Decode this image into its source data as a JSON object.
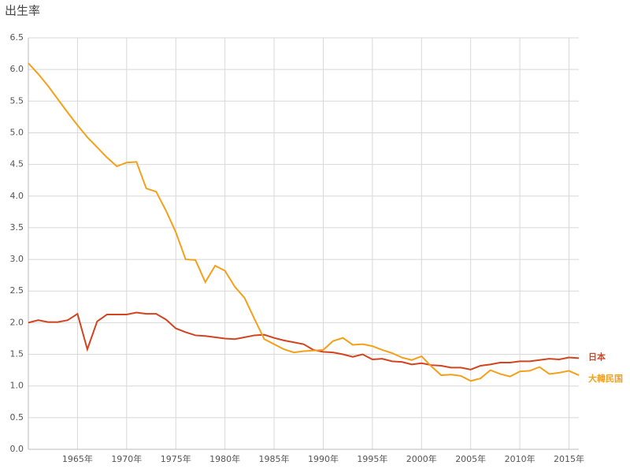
{
  "chart_data": {
    "type": "line",
    "title": "出生率",
    "x": [
      1960,
      1961,
      1962,
      1963,
      1964,
      1965,
      1966,
      1967,
      1968,
      1969,
      1970,
      1971,
      1972,
      1973,
      1974,
      1975,
      1976,
      1977,
      1978,
      1979,
      1980,
      1981,
      1982,
      1983,
      1984,
      1985,
      1986,
      1987,
      1988,
      1989,
      1990,
      1991,
      1992,
      1993,
      1994,
      1995,
      1996,
      1997,
      1998,
      1999,
      2000,
      2001,
      2002,
      2003,
      2004,
      2005,
      2006,
      2007,
      2008,
      2009,
      2010,
      2011,
      2012,
      2013,
      2014,
      2015,
      2016
    ],
    "series": [
      {
        "name": "日本",
        "color": "#d2441f",
        "values": [
          2.0,
          2.04,
          2.01,
          2.01,
          2.04,
          2.14,
          1.58,
          2.02,
          2.13,
          2.13,
          2.13,
          2.16,
          2.14,
          2.14,
          2.05,
          1.91,
          1.85,
          1.8,
          1.79,
          1.77,
          1.75,
          1.74,
          1.77,
          1.8,
          1.81,
          1.76,
          1.72,
          1.69,
          1.66,
          1.57,
          1.54,
          1.53,
          1.5,
          1.46,
          1.5,
          1.42,
          1.43,
          1.39,
          1.38,
          1.34,
          1.36,
          1.33,
          1.32,
          1.29,
          1.29,
          1.26,
          1.32,
          1.34,
          1.37,
          1.37,
          1.39,
          1.39,
          1.41,
          1.43,
          1.42,
          1.45,
          1.44
        ]
      },
      {
        "name": "大韓民国",
        "color": "#f5a01a",
        "values": [
          6.1,
          5.93,
          5.74,
          5.53,
          5.32,
          5.12,
          4.93,
          4.77,
          4.61,
          4.47,
          4.53,
          4.54,
          4.12,
          4.07,
          3.77,
          3.43,
          3.0,
          2.99,
          2.64,
          2.9,
          2.82,
          2.57,
          2.39,
          2.06,
          1.74,
          1.66,
          1.58,
          1.53,
          1.55,
          1.56,
          1.57,
          1.71,
          1.76,
          1.65,
          1.66,
          1.63,
          1.57,
          1.52,
          1.45,
          1.41,
          1.47,
          1.31,
          1.17,
          1.18,
          1.16,
          1.08,
          1.12,
          1.25,
          1.19,
          1.15,
          1.23,
          1.24,
          1.3,
          1.19,
          1.21,
          1.24,
          1.17
        ]
      }
    ],
    "xlim": [
      1960,
      2016
    ],
    "xticks": [
      {
        "value": 1965,
        "label": "1965年"
      },
      {
        "value": 1970,
        "label": "1970年"
      },
      {
        "value": 1975,
        "label": "1975年"
      },
      {
        "value": 1980,
        "label": "1980年"
      },
      {
        "value": 1985,
        "label": "1985年"
      },
      {
        "value": 1990,
        "label": "1990年"
      },
      {
        "value": 1995,
        "label": "1995年"
      },
      {
        "value": 2000,
        "label": "2000年"
      },
      {
        "value": 2005,
        "label": "2005年"
      },
      {
        "value": 2010,
        "label": "2010年"
      },
      {
        "value": 2015,
        "label": "2015年"
      }
    ],
    "ylim": [
      0,
      6.5
    ],
    "yticks": [
      {
        "value": 0,
        "label": "0.0"
      },
      0.5,
      {
        "value": 1,
        "label": "1.0"
      },
      1.5,
      {
        "value": 2,
        "label": "2.0"
      },
      2.5,
      {
        "value": 3,
        "label": "3.0"
      },
      3.5,
      {
        "value": 4,
        "label": "4.0"
      },
      4.5,
      {
        "value": 5,
        "label": "5.0"
      },
      5.5,
      {
        "value": 6,
        "label": "6.0"
      },
      6.5
    ],
    "grid": true
  }
}
